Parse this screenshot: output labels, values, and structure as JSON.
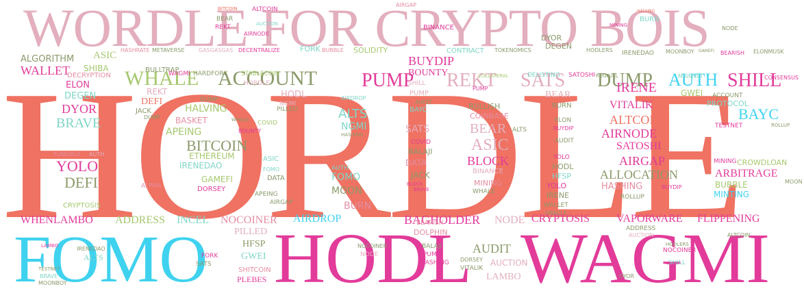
{
  "colors": {
    "salmon": "#ef7262",
    "pink": "#e3aebd",
    "magenta": "#e23b9a",
    "cyan": "#3fd2ef",
    "olive": "#8a9a6a",
    "green": "#a6c86e",
    "teal": "#7fd6c6",
    "rose": "#e58da2"
  },
  "words": {
    "hordle": "HORDLE",
    "title": "WORDLE FOR CRYPTO BOIS",
    "fomo": "FOMO",
    "hodl": "HODL",
    "wagmi": "WAGMI",
    "whale": "WHALE",
    "account": "ACCOUNT",
    "pump": "PUMP",
    "rekt": "REKT",
    "sats": "SATS",
    "dump": "DUMP",
    "auth": "AUTH",
    "shill": "SHILL",
    "wallet": "WALLET",
    "algorithm": "ALGORITHM",
    "asic": "ASIC",
    "shiba": "SHIBA",
    "hashrate": "HASHRATE",
    "metaverse": "METAVERSE",
    "gasgasgas": "GASGASGAS",
    "decentralize": "DECENTRALIZE",
    "fork": "FORK",
    "bubble": "BUBBLE",
    "solidity": "SOLIDITY",
    "buydip": "BUYDIP",
    "contract": "CONTRACT",
    "tokenomics": "TOKENOMICS",
    "degen": "DEGEN",
    "dyor": "DYOR",
    "hodlers": "HODLERS",
    "irenedao": "IRENEDAO",
    "moonboy": "MOONBOY",
    "gamefi": "GAMEFI",
    "bearish": "BEARISH",
    "elonmusk": "ELONMUSK",
    "altcoin": "ALTCOIN",
    "binance": "BINANCE",
    "airgap": "AIRGAP",
    "bitcoin_top": "BITCOIN",
    "bear_top": "BEAR",
    "airnode_top": "AIRNODE",
    "auction_top": "AUCTION",
    "halving_top": "HALVING",
    "burn_top": "BURN",
    "node_top": "NODE",
    "mining_top": "MINING",
    "elon": "ELON",
    "degen2": "DEGEN",
    "dyor2": "DYOR",
    "brave": "BRAVE",
    "yolo": "YOLO",
    "defi": "DEFI",
    "alpha": "ALPHA",
    "cryptosis": "CRYPTOSIS",
    "whenlambo": "WHENLAMBO",
    "address": "ADDRESS",
    "incel": "INCEL",
    "nocoiner": "NOCOINER",
    "airdrop": "AIRDROP",
    "bagholder": "BAGHOLDER",
    "node": "NODE",
    "cryptosis2": "CRYPTOSIS",
    "vaporware": "VAPORWARE",
    "flippening": "FLIPPENING",
    "bitcoin": "BITCOIN",
    "ethereum": "ETHEREUM",
    "asic2": "ASIC",
    "block": "BLOCK",
    "bear": "BEAR",
    "coinbase": "COINBASE",
    "alts": "ALTS",
    "ngmi": "NGMI",
    "airnode": "AIRNODE",
    "satoshi": "SATOSHI",
    "airgap2": "AIRGAP",
    "allocation": "ALLOCATION",
    "arbitrage": "ARBITRAGE",
    "bubble2": "BUBBLE",
    "minting": "MINTING",
    "bayc": "BAYC",
    "irene": "IRENE",
    "vitalik": "VITALIK",
    "altcoin2": "ALTCOIN",
    "gwei": "GWEI",
    "protocol": "PROTOCOL",
    "testnet": "TESTNET",
    "crowdloan": "CROWDLOAN",
    "mining": "MINING",
    "hashing": "HASHING",
    "rollup": "ROLLUP",
    "apeing": "APEING",
    "basket": "BASKET",
    "halving": "HALVING",
    "covid": "COVID",
    "bounty": "BOUNTY",
    "bullish": "BULLISH",
    "balaji": "BALAJI",
    "data": "DATA",
    "jack": "JACK",
    "moon": "MOON",
    "burn": "BURN",
    "gamefi2": "GAMEFI",
    "dorsey": "DORSEY",
    "hfsp": "HFSP",
    "audit": "AUDIT",
    "auction": "AUCTION",
    "lambo": "LAMBO",
    "dolphin": "DOLPHIN",
    "bearish2": "BEARISH",
    "shitcoin": "SHITCOIN",
    "plebes": "PLEBES",
    "pilled": "PILLED",
    "gwei2": "GWEI",
    "alts2": "ALTS",
    "irenedao2": "IRENEDAO",
    "testnet2": "TESTNET",
    "brave2": "BRAVE",
    "moonboy2": "MOONBOY",
    "sats2": "SATS",
    "fork2": "FORK",
    "hfsp2": "HFSP",
    "shill2": "SHILL",
    "altcoin3": "ALTCOIN",
    "nocoiner2": "NOCOINER",
    "hodlers2": "HODLERS",
    "dyor3": "DYOR",
    "bulltrap": "BULLTRAP",
    "decryption": "DECRYPTION",
    "wagmi_small": "WAGMI",
    "hardfork": "HARDFORK",
    "stablecoin": "STABLECOIN",
    "bounty2": "BOUNTY",
    "collateral": "COLLATERAL",
    "delisting": "DELISTING",
    "satoshi2": "SATOSHI",
    "rugpull": "RUGPULL",
    "mainnet": "MAINNET",
    "consensus": "CONSENSUS",
    "hodl_small": "HODL",
    "hordle_small": "HORDLE",
    "pump2": "PUMP",
    "shill3": "SHILL",
    "irene2": "IRENE",
    "jack2": "JACK",
    "binance2": "BINANCE",
    "whale2": "WHALE",
    "fomo2": "FOMO",
    "auth2": "AUTH",
    "yolo2": "YOLO",
    "hfsp3": "HFSP",
    "hodl2": "HODL",
    "elon2": "ELON",
    "burn2": "BURN",
    "irene3": "IRENE",
    "rollup2": "ROLLUP",
    "wallet2": "WALLET",
    "oracle": "ORACLE",
    "rekt2": "REKT",
    "defi2": "DEFI",
    "fungible": "FUNGIBLE",
    "covid2": "COVID",
    "pump3": "PUMP",
    "mining2": "MINING",
    "dump2": "DUMP",
    "lambo2": "LAMBO",
    "auction2": "AUCTION"
  }
}
